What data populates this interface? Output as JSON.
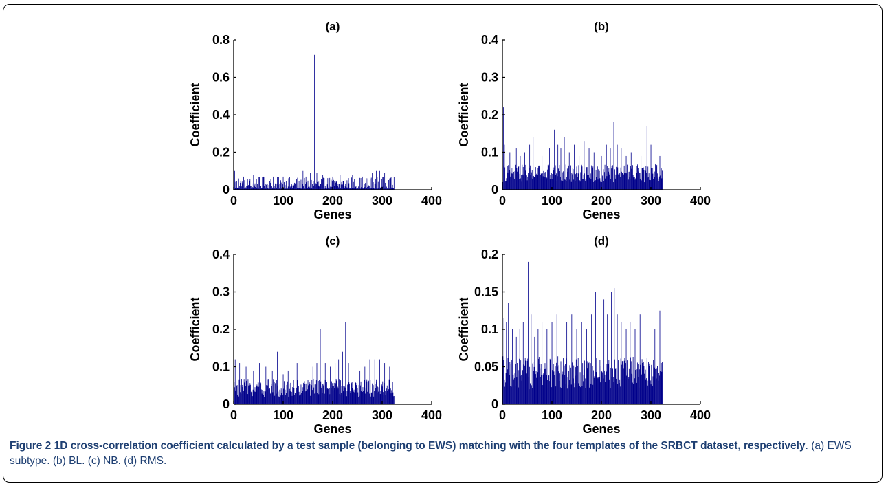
{
  "caption": {
    "label": "Figure 2",
    "bold_text": "1D cross-correlation coefficient calculated by a test sample (belonging to EWS) matching with the four templates of the SRBCT dataset, respectively",
    "normal_text": ". (a) EWS subtype. (b) BL. (c) NB. (d) RMS."
  },
  "colors": {
    "bars": "#00008b",
    "axes": "#000000",
    "caption": "#1e3f72"
  },
  "chart_data": [
    {
      "type": "bar",
      "title": "(a)",
      "xlabel": "Genes",
      "ylabel": "Coefficient",
      "xlim": [
        0,
        400
      ],
      "ylim": [
        0,
        0.8
      ],
      "xticks": [
        "0",
        "100",
        "200",
        "300",
        "400"
      ],
      "yticks": [
        "0",
        "0.2",
        "0.4",
        "0.6",
        "0.8"
      ],
      "n_genes": 324,
      "spikes": [
        [
          2,
          0.1
        ],
        [
          10,
          0.06
        ],
        [
          20,
          0.07
        ],
        [
          40,
          0.08
        ],
        [
          60,
          0.07
        ],
        [
          80,
          0.07
        ],
        [
          100,
          0.07
        ],
        [
          120,
          0.07
        ],
        [
          140,
          0.1
        ],
        [
          155,
          0.09
        ],
        [
          163,
          0.72
        ],
        [
          168,
          0.09
        ],
        [
          180,
          0.08
        ],
        [
          200,
          0.07
        ],
        [
          215,
          0.08
        ],
        [
          240,
          0.08
        ],
        [
          260,
          0.07
        ],
        [
          280,
          0.09
        ],
        [
          288,
          0.1
        ],
        [
          295,
          0.1
        ],
        [
          305,
          0.09
        ],
        [
          315,
          0.06
        ]
      ]
    },
    {
      "type": "bar",
      "title": "(b)",
      "xlabel": "Genes",
      "ylabel": "Coefficient",
      "xlim": [
        0,
        400
      ],
      "ylim": [
        0,
        0.4
      ],
      "xticks": [
        "0",
        "100",
        "200",
        "300",
        "400"
      ],
      "yticks": [
        "0",
        "0.1",
        "0.2",
        "0.3",
        "0.4"
      ],
      "n_genes": 324,
      "spikes": [
        [
          2,
          0.22
        ],
        [
          4,
          0.12
        ],
        [
          15,
          0.1
        ],
        [
          28,
          0.11
        ],
        [
          36,
          0.09
        ],
        [
          45,
          0.1
        ],
        [
          55,
          0.12
        ],
        [
          62,
          0.14
        ],
        [
          70,
          0.1
        ],
        [
          80,
          0.09
        ],
        [
          95,
          0.11
        ],
        [
          105,
          0.16
        ],
        [
          112,
          0.12
        ],
        [
          118,
          0.11
        ],
        [
          125,
          0.14
        ],
        [
          135,
          0.1
        ],
        [
          145,
          0.12
        ],
        [
          155,
          0.09
        ],
        [
          165,
          0.13
        ],
        [
          175,
          0.11
        ],
        [
          185,
          0.1
        ],
        [
          200,
          0.09
        ],
        [
          210,
          0.12
        ],
        [
          218,
          0.11
        ],
        [
          225,
          0.18
        ],
        [
          232,
          0.12
        ],
        [
          240,
          0.11
        ],
        [
          250,
          0.09
        ],
        [
          260,
          0.1
        ],
        [
          270,
          0.11
        ],
        [
          280,
          0.09
        ],
        [
          292,
          0.17
        ],
        [
          300,
          0.12
        ],
        [
          310,
          0.07
        ],
        [
          318,
          0.09
        ]
      ]
    },
    {
      "type": "bar",
      "title": "(c)",
      "xlabel": "Genes",
      "ylabel": "Coefficient",
      "xlim": [
        0,
        400
      ],
      "ylim": [
        0,
        0.4
      ],
      "xticks": [
        "0",
        "100",
        "200",
        "300",
        "400"
      ],
      "yticks": [
        "0",
        "0.1",
        "0.2",
        "0.3",
        "0.4"
      ],
      "n_genes": 324,
      "spikes": [
        [
          3,
          0.12
        ],
        [
          12,
          0.11
        ],
        [
          25,
          0.1
        ],
        [
          40,
          0.09
        ],
        [
          52,
          0.11
        ],
        [
          65,
          0.1
        ],
        [
          78,
          0.09
        ],
        [
          88,
          0.14
        ],
        [
          100,
          0.08
        ],
        [
          110,
          0.09
        ],
        [
          120,
          0.1
        ],
        [
          128,
          0.11
        ],
        [
          138,
          0.13
        ],
        [
          148,
          0.12
        ],
        [
          160,
          0.1
        ],
        [
          168,
          0.11
        ],
        [
          175,
          0.2
        ],
        [
          185,
          0.11
        ],
        [
          195,
          0.1
        ],
        [
          205,
          0.11
        ],
        [
          212,
          0.12
        ],
        [
          220,
          0.14
        ],
        [
          226,
          0.22
        ],
        [
          232,
          0.11
        ],
        [
          245,
          0.1
        ],
        [
          255,
          0.09
        ],
        [
          265,
          0.1
        ],
        [
          275,
          0.12
        ],
        [
          285,
          0.12
        ],
        [
          295,
          0.12
        ],
        [
          305,
          0.11
        ],
        [
          315,
          0.1
        ],
        [
          320,
          0.06
        ]
      ]
    },
    {
      "type": "bar",
      "title": "(d)",
      "xlabel": "Genes",
      "ylabel": "Coefficient",
      "xlim": [
        0,
        400
      ],
      "ylim": [
        0,
        0.2
      ],
      "xticks": [
        "0",
        "100",
        "200",
        "300",
        "400"
      ],
      "yticks": [
        "0",
        "0.05",
        "0.1",
        "0.15",
        "0.2"
      ],
      "n_genes": 324,
      "spikes": [
        [
          3,
          0.115
        ],
        [
          8,
          0.11
        ],
        [
          12,
          0.135
        ],
        [
          20,
          0.1
        ],
        [
          28,
          0.09
        ],
        [
          35,
          0.1
        ],
        [
          42,
          0.11
        ],
        [
          52,
          0.19
        ],
        [
          58,
          0.12
        ],
        [
          65,
          0.09
        ],
        [
          72,
          0.1
        ],
        [
          80,
          0.11
        ],
        [
          90,
          0.1
        ],
        [
          100,
          0.11
        ],
        [
          110,
          0.12
        ],
        [
          120,
          0.1
        ],
        [
          130,
          0.11
        ],
        [
          140,
          0.12
        ],
        [
          150,
          0.1
        ],
        [
          160,
          0.11
        ],
        [
          170,
          0.1
        ],
        [
          180,
          0.12
        ],
        [
          188,
          0.15
        ],
        [
          195,
          0.11
        ],
        [
          205,
          0.14
        ],
        [
          212,
          0.12
        ],
        [
          220,
          0.15
        ],
        [
          226,
          0.155
        ],
        [
          232,
          0.12
        ],
        [
          240,
          0.11
        ],
        [
          250,
          0.1
        ],
        [
          258,
          0.11
        ],
        [
          268,
          0.1
        ],
        [
          278,
          0.12
        ],
        [
          288,
          0.11
        ],
        [
          298,
          0.13
        ],
        [
          308,
          0.1
        ],
        [
          318,
          0.125
        ]
      ]
    }
  ]
}
